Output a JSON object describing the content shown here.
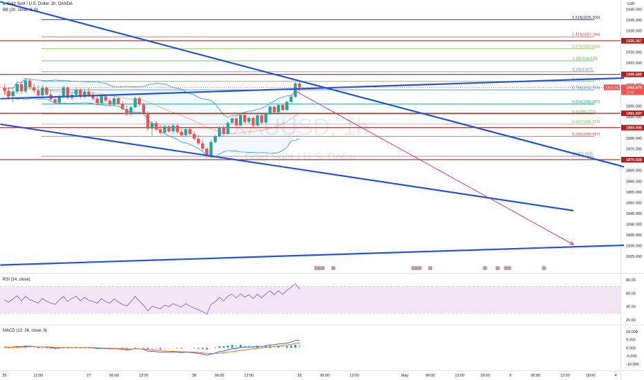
{
  "header": {
    "symbol_title": "Gold Spot / U.S. Dollar, 1h, OANDA",
    "bb_title": "BB (20, close, 2, 0)",
    "rsi_title": "RSI (14, close)",
    "macd_title": "MACD (12, 26, close, 9)",
    "currency": "USD"
  },
  "watermark": {
    "symbol": "XAUUSD, 1h",
    "name": "Gold Spot / U.S. Dollar"
  },
  "colors": {
    "up": "#26a69a",
    "down": "#ef5350",
    "trendline": "#1e53e5",
    "level": "#b71c1c",
    "arrow": "#e91e63",
    "rsi_band": "#f3e5f5",
    "rsi_line": "#7e57c2"
  },
  "chart_data": {
    "type": "candlestick",
    "symbol": "XAUUSD",
    "interval": "1h",
    "ylim": [
      1818.3,
      1944.3
    ],
    "price_ticks": [
      "1940.000",
      "1935.000",
      "1930.000",
      "1920.000",
      "1915.000",
      "1910.000",
      "1905.000",
      "1895.000",
      "1890.000",
      "1880.000",
      "1875.000",
      "1865.000",
      "1860.000",
      "1855.000",
      "1850.000",
      "1845.000",
      "1840.000",
      "1835.000",
      "1830.000",
      "1825.000"
    ],
    "time_labels": [
      {
        "label": "26",
        "i": 0
      },
      {
        "label": "12:00",
        "i": 8
      },
      {
        "label": "27",
        "i": 20
      },
      {
        "label": "06:00",
        "i": 26
      },
      {
        "label": "12:00",
        "i": 33
      },
      {
        "label": "28",
        "i": 45
      },
      {
        "label": "06:00",
        "i": 51
      },
      {
        "label": "12:00",
        "i": 58
      },
      {
        "label": "29",
        "i": 70
      },
      {
        "label": "06:00",
        "i": 76
      },
      {
        "label": "12:00",
        "i": 83
      },
      {
        "label": "May",
        "i": 95
      },
      {
        "label": "06:00",
        "i": 101
      },
      {
        "label": "12:00",
        "i": 108
      },
      {
        "label": "18:00",
        "i": 114
      },
      {
        "label": "3",
        "i": 120
      },
      {
        "label": "06:00",
        "i": 126
      },
      {
        "label": "12:00",
        "i": 133
      },
      {
        "label": "18:00",
        "i": 139
      },
      {
        "label": "4",
        "i": 145
      }
    ],
    "price_labels": [
      {
        "text": "1925.357",
        "value": 1925.357,
        "kind": "level"
      },
      {
        "text": "1909.689",
        "value": 1909.689,
        "kind": "level"
      },
      {
        "text": "XAUUSD",
        "value": 1903.675,
        "kind": "symbol"
      },
      {
        "text": "1903.675",
        "value": 1903.675,
        "kind": "current"
      },
      {
        "text": "12:47",
        "value": 1903.675,
        "kind": "countdown"
      },
      {
        "text": "1891.597",
        "value": 1891.597,
        "kind": "level"
      },
      {
        "text": "1884.930",
        "value": 1884.93,
        "kind": "level"
      },
      {
        "text": "1870.029",
        "value": 1870.029,
        "kind": "level"
      }
    ],
    "horizontal_levels": [
      1925.357,
      1909.689,
      1891.597,
      1884.93,
      1870.029
    ],
    "fibonacci": [
      {
        "label": "1.618(1935.200)",
        "value": 1935.2,
        "color": "#1a237e"
      },
      {
        "label": "1.414(1927.184)",
        "value": 1927.184,
        "color": "#e53935"
      },
      {
        "label": "1.272(1921.609)",
        "value": 1921.609,
        "color": "#8bc34a"
      },
      {
        "label": "1.13(1916.025)",
        "value": 1916.025,
        "color": "#4caf50"
      },
      {
        "label": "1(1910.917)",
        "value": 1910.917,
        "color": "#787b86"
      },
      {
        "label": "0.886(1906.437)",
        "value": 1906.437,
        "color": "#7cb342"
      },
      {
        "label": "0.786(1902.508)",
        "value": 1902.508,
        "color": "#1e88e5"
      },
      {
        "label": "0.618(1895.907)",
        "value": 1895.907,
        "color": "#26a69a"
      },
      {
        "label": "0.5(1891.270)",
        "value": 1891.27,
        "color": "#4caf50"
      },
      {
        "label": "0.382(1886.632)",
        "value": 1886.632,
        "color": "#8bc34a"
      },
      {
        "label": "0.236(1880.897)",
        "value": 1880.897,
        "color": "#e53935"
      },
      {
        "label": "0(1871.623)",
        "value": 1871.623,
        "color": "#787b86"
      }
    ],
    "trendlines": [
      {
        "from": {
          "i": -1,
          "price": 1943.5
        },
        "to": {
          "i": 147,
          "price": 1866.7
        }
      },
      {
        "from": {
          "i": -1,
          "price": 1898.4
        },
        "to": {
          "i": 147,
          "price": 1908.0
        }
      },
      {
        "from": {
          "i": -1,
          "price": 1886.5
        },
        "to": {
          "i": 135,
          "price": 1846.3
        }
      },
      {
        "from": {
          "i": -1,
          "price": 1821.0
        },
        "to": {
          "i": 147,
          "price": 1830.2
        }
      }
    ],
    "projection_arrow": {
      "from": {
        "i": 69,
        "price": 1902.0
      },
      "to": {
        "i": 135,
        "price": 1830.5
      }
    },
    "candles": [
      [
        1903.5,
        1905.1,
        1900.0,
        1902.1
      ],
      [
        1902.1,
        1903.5,
        1898.0,
        1899.6
      ],
      [
        1899.6,
        1903.0,
        1896.8,
        1901.7
      ],
      [
        1901.7,
        1906.0,
        1900.5,
        1905.2
      ],
      [
        1905.2,
        1906.4,
        1900.8,
        1901.8
      ],
      [
        1901.8,
        1908.0,
        1901.0,
        1906.9
      ],
      [
        1906.9,
        1907.6,
        1903.0,
        1903.7
      ],
      [
        1903.7,
        1905.3,
        1900.9,
        1902.2
      ],
      [
        1902.2,
        1904.6,
        1899.3,
        1899.9
      ],
      [
        1899.9,
        1904.8,
        1899.0,
        1903.5
      ],
      [
        1903.5,
        1904.2,
        1899.8,
        1900.3
      ],
      [
        1900.3,
        1902.1,
        1897.5,
        1898.1
      ],
      [
        1898.1,
        1899.7,
        1895.8,
        1896.5
      ],
      [
        1896.5,
        1900.2,
        1896.0,
        1899.4
      ],
      [
        1899.4,
        1904.3,
        1898.7,
        1903.6
      ],
      [
        1903.6,
        1904.1,
        1898.0,
        1898.8
      ],
      [
        1898.8,
        1901.5,
        1897.6,
        1900.2
      ],
      [
        1900.2,
        1903.4,
        1899.6,
        1902.5
      ],
      [
        1902.5,
        1903.2,
        1898.4,
        1899.3
      ],
      [
        1899.3,
        1902.9,
        1898.6,
        1901.7
      ],
      [
        1901.7,
        1903.4,
        1899.3,
        1899.8
      ],
      [
        1899.8,
        1901.6,
        1897.8,
        1898.5
      ],
      [
        1898.5,
        1899.5,
        1895.6,
        1896.4
      ],
      [
        1896.4,
        1900.7,
        1895.8,
        1899.5
      ],
      [
        1899.5,
        1900.3,
        1896.7,
        1897.5
      ],
      [
        1897.5,
        1898.8,
        1894.8,
        1895.6
      ],
      [
        1895.6,
        1899.4,
        1895.0,
        1898.6
      ],
      [
        1898.6,
        1899.2,
        1895.5,
        1896.1
      ],
      [
        1896.1,
        1897.3,
        1892.9,
        1893.6
      ],
      [
        1893.6,
        1895.1,
        1890.5,
        1891.2
      ],
      [
        1891.2,
        1895.3,
        1890.6,
        1894.4
      ],
      [
        1894.4,
        1899.4,
        1893.8,
        1898.6
      ],
      [
        1898.6,
        1899.3,
        1894.8,
        1895.7
      ],
      [
        1895.7,
        1896.6,
        1891.1,
        1891.8
      ],
      [
        1891.8,
        1892.5,
        1883.5,
        1884.5
      ],
      [
        1884.5,
        1888.0,
        1881.1,
        1887.1
      ],
      [
        1887.1,
        1888.0,
        1883.3,
        1884.1
      ],
      [
        1884.1,
        1886.3,
        1881.6,
        1882.6
      ],
      [
        1882.6,
        1886.3,
        1881.9,
        1885.5
      ],
      [
        1885.5,
        1886.1,
        1882.6,
        1883.2
      ],
      [
        1883.2,
        1886.9,
        1882.4,
        1885.9
      ],
      [
        1885.9,
        1886.9,
        1882.1,
        1883.0
      ],
      [
        1883.0,
        1884.3,
        1880.7,
        1881.4
      ],
      [
        1881.4,
        1884.9,
        1880.7,
        1884.2
      ],
      [
        1884.2,
        1884.8,
        1881.4,
        1882.0
      ],
      [
        1882.0,
        1883.2,
        1879.1,
        1879.8
      ],
      [
        1879.8,
        1881.6,
        1876.9,
        1877.6
      ],
      [
        1877.6,
        1879.3,
        1874.3,
        1875.1
      ],
      [
        1875.1,
        1875.7,
        1871.0,
        1871.8
      ],
      [
        1871.8,
        1878.9,
        1871.3,
        1878.2
      ],
      [
        1878.2,
        1881.5,
        1877.6,
        1880.9
      ],
      [
        1880.9,
        1885.8,
        1880.3,
        1885.0
      ],
      [
        1885.0,
        1886.0,
        1881.1,
        1882.0
      ],
      [
        1882.0,
        1887.9,
        1881.4,
        1887.2
      ],
      [
        1887.2,
        1889.9,
        1886.6,
        1889.2
      ],
      [
        1889.2,
        1889.8,
        1885.3,
        1886.0
      ],
      [
        1886.0,
        1891.5,
        1885.6,
        1890.8
      ],
      [
        1890.8,
        1892.3,
        1886.8,
        1887.6
      ],
      [
        1887.6,
        1890.2,
        1886.8,
        1889.4
      ],
      [
        1889.4,
        1890.0,
        1885.2,
        1886.0
      ],
      [
        1886.0,
        1891.3,
        1885.4,
        1890.6
      ],
      [
        1890.6,
        1891.2,
        1886.6,
        1887.4
      ],
      [
        1887.4,
        1891.9,
        1886.8,
        1891.2
      ],
      [
        1891.2,
        1895.4,
        1890.6,
        1894.7
      ],
      [
        1894.7,
        1895.3,
        1891.5,
        1892.1
      ],
      [
        1892.1,
        1896.1,
        1891.5,
        1895.5
      ],
      [
        1895.5,
        1896.1,
        1892.6,
        1893.2
      ],
      [
        1893.2,
        1897.5,
        1892.6,
        1896.9
      ],
      [
        1896.9,
        1900.0,
        1896.3,
        1899.3
      ],
      [
        1899.3,
        1906.1,
        1898.7,
        1905.5
      ],
      [
        1905.5,
        1907.0,
        1901.5,
        1903.7
      ]
    ],
    "bollinger": {
      "length": 20,
      "mult": 2
    },
    "rsi": {
      "ylim": [
        17,
        85
      ],
      "ticks": [
        "80.00",
        "60.00",
        "40.00",
        "20.00"
      ],
      "overbought": 70,
      "oversold": 30,
      "values": [
        49.6,
        46.5,
        51.5,
        56.0,
        48.3,
        55.2,
        50.1,
        47.9,
        45.2,
        52.1,
        47.7,
        45.1,
        43.4,
        49.8,
        55.0,
        47.3,
        52.2,
        55.3,
        48.6,
        53.7,
        49.2,
        47.6,
        45.0,
        51.6,
        47.3,
        45.2,
        51.2,
        46.9,
        43.0,
        40.8,
        47.2,
        55.2,
        47.9,
        42.2,
        33.6,
        40.5,
        38.6,
        36.8,
        42.2,
        39.8,
        44.4,
        41.5,
        39.4,
        44.2,
        40.9,
        37.6,
        35.0,
        32.4,
        28.5,
        43.0,
        47.2,
        53.6,
        48.4,
        55.6,
        58.5,
        52.8,
        59.0,
        54.0,
        57.6,
        51.9,
        58.3,
        53.0,
        58.9,
        63.4,
        57.8,
        63.6,
        58.1,
        64.2,
        68.8,
        74.0,
        66.2
      ]
    },
    "macd": {
      "ylim": [
        -13,
        12.5
      ],
      "ticks": [
        "10.000",
        "5.000",
        "0.000",
        "-5.000",
        "-10.000"
      ],
      "macd": [
        0.6,
        0.3,
        0.4,
        0.9,
        0.7,
        1.1,
        1.0,
        0.8,
        0.4,
        0.6,
        0.4,
        0.1,
        -0.3,
        -0.2,
        0.3,
        0.1,
        0.1,
        0.3,
        0.1,
        0.2,
        0.1,
        -0.1,
        -0.4,
        -0.3,
        -0.4,
        -0.7,
        -0.5,
        -0.6,
        -0.9,
        -1.3,
        -1.1,
        -0.5,
        -0.6,
        -1.0,
        -2.0,
        -2.1,
        -2.4,
        -2.7,
        -2.6,
        -2.8,
        -2.6,
        -2.7,
        -2.9,
        -2.7,
        -2.8,
        -3.1,
        -3.5,
        -3.9,
        -4.5,
        -3.9,
        -3.2,
        -2.3,
        -2.0,
        -1.3,
        -0.5,
        -0.4,
        0.3,
        0.4,
        0.6,
        0.5,
        0.9,
        0.8,
        1.2,
        1.8,
        1.9,
        2.4,
        2.5,
        2.9,
        3.5,
        4.5,
        4.7
      ],
      "signal": [
        0.5,
        0.4,
        0.4,
        0.5,
        0.5,
        0.6,
        0.7,
        0.7,
        0.6,
        0.6,
        0.6,
        0.5,
        0.3,
        0.2,
        0.2,
        0.2,
        0.2,
        0.2,
        0.2,
        0.2,
        0.2,
        0.1,
        0.0,
        -0.1,
        -0.2,
        -0.3,
        -0.3,
        -0.4,
        -0.5,
        -0.7,
        -0.8,
        -0.7,
        -0.7,
        -0.8,
        -1.0,
        -1.2,
        -1.5,
        -1.7,
        -1.9,
        -2.1,
        -2.2,
        -2.3,
        -2.4,
        -2.5,
        -2.6,
        -2.7,
        -2.9,
        -3.1,
        -3.4,
        -3.5,
        -3.5,
        -3.3,
        -3.0,
        -2.7,
        -2.3,
        -2.0,
        -1.6,
        -1.2,
        -0.9,
        -0.6,
        -0.3,
        -0.1,
        0.2,
        0.5,
        0.8,
        1.1,
        1.4,
        1.7,
        2.1,
        2.6,
        3.0
      ]
    },
    "events": {
      "clusters": [
        {
          "i": 74,
          "count": 3
        },
        {
          "i": 78,
          "count": 1
        },
        {
          "i": 97,
          "count": 3
        },
        {
          "i": 101,
          "count": 1
        },
        {
          "i": 114,
          "count": 1
        },
        {
          "i": 117,
          "count": 1
        },
        {
          "i": 119,
          "count": 2
        },
        {
          "i": 128,
          "count": 1
        }
      ]
    }
  }
}
